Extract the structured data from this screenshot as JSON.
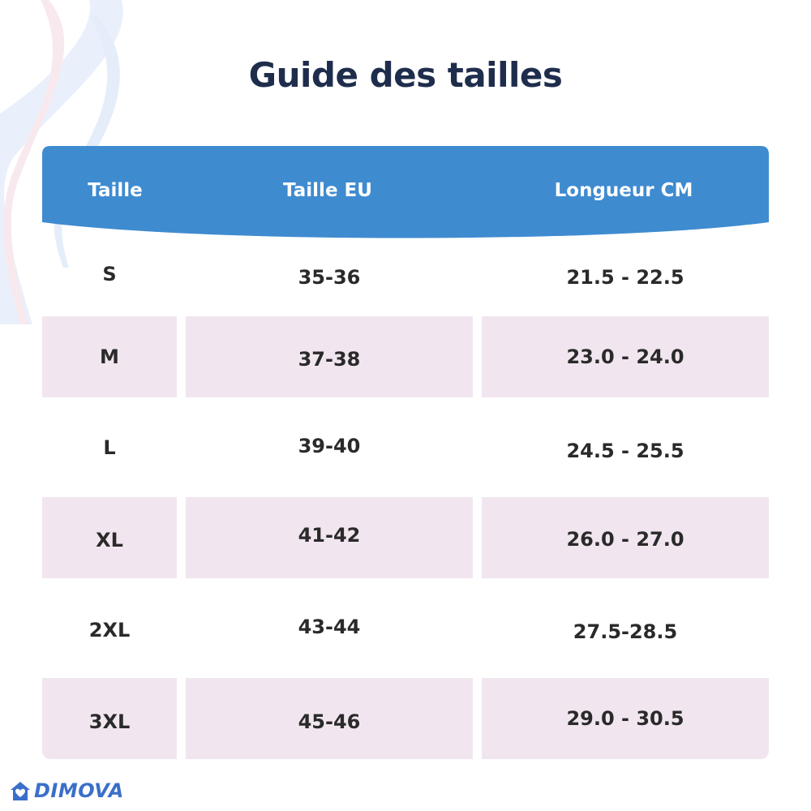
{
  "title": "Guide des tailles",
  "colors": {
    "header_blue": "#3f8bd0",
    "row_shade": "#f1e6ef",
    "title_navy": "#1f2d4d",
    "logo_blue": "#3a6fc9"
  },
  "table": {
    "headers": [
      "Taille",
      "Taille EU",
      "Longueur CM"
    ],
    "rows": [
      [
        "S",
        "35-36",
        "21.5 - 22.5"
      ],
      [
        "M",
        "37-38",
        "23.0 - 24.0"
      ],
      [
        "L",
        "39-40",
        "24.5 - 25.5"
      ],
      [
        "XL",
        "41-42",
        "26.0 - 27.0"
      ],
      [
        "2XL",
        "43-44",
        "27.5-28.5"
      ],
      [
        "3XL",
        "45-46",
        "29.0 - 30.5"
      ]
    ]
  },
  "brand": {
    "name": "DIMOVA",
    "icon": "house-heart-icon"
  }
}
